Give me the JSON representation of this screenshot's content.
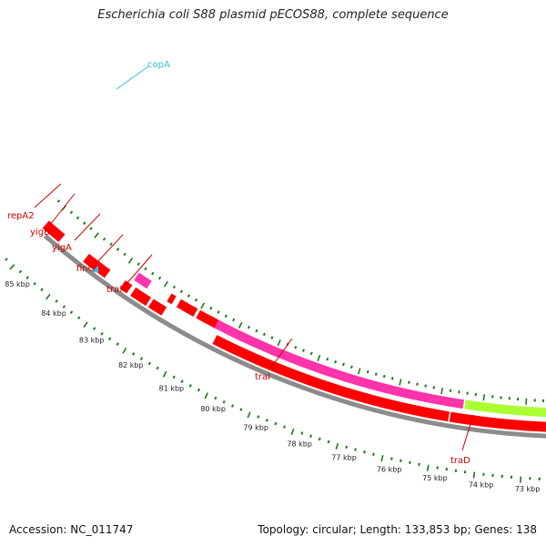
{
  "title": "Escherichia coli S88 plasmid pECOS88, complete sequence",
  "footer": {
    "accession": "Accession: NC_011747",
    "summary": "Topology: circular; Length: 133,853 bp; Genes: 138"
  },
  "colors": {
    "backbone": "#8c8c8c",
    "gene_red": "#ff0000",
    "gene_pink": "#ff33aa",
    "gene_green": "#aaff33",
    "tick": "#1a7a1a",
    "label_red": "#cc0000",
    "label_blue": "#33bbdd"
  },
  "kbp_ticks": [
    {
      "label": "85 kbp"
    },
    {
      "label": "84 kbp"
    },
    {
      "label": "83 kbp"
    },
    {
      "label": "82 kbp"
    },
    {
      "label": "81 kbp"
    },
    {
      "label": "80 kbp"
    },
    {
      "label": "79 kbp"
    },
    {
      "label": "78 kbp"
    },
    {
      "label": "77 kbp"
    },
    {
      "label": "76 kbp"
    },
    {
      "label": "75 kbp"
    },
    {
      "label": "74 kbp"
    },
    {
      "label": "73 kbp"
    }
  ],
  "gene_labels": [
    {
      "name": "copA",
      "color": "#33bbdd"
    },
    {
      "name": "repA2",
      "color": "#cc0000"
    },
    {
      "name": "yigB",
      "color": "#cc0000"
    },
    {
      "name": "yigA",
      "color": "#cc0000"
    },
    {
      "name": "finO",
      "color": "#cc0000"
    },
    {
      "name": "traX",
      "color": "#cc0000"
    },
    {
      "name": "traI",
      "color": "#cc0000"
    },
    {
      "name": "traD",
      "color": "#cc0000"
    }
  ]
}
